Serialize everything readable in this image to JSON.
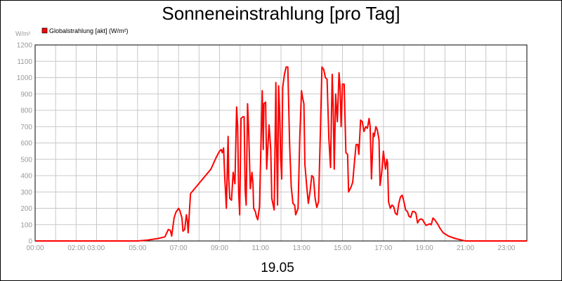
{
  "chart_data": {
    "type": "line",
    "title": "Sonneneinstrahlung [pro Tag]",
    "subtitle": "19.05",
    "ylabel": "W/m²",
    "legend": {
      "position": "top-left",
      "entries": [
        "Globalstrahlung [akt] (W/m²)"
      ]
    },
    "grid": true,
    "xlim": [
      "00:00",
      "24:00"
    ],
    "ylim": [
      0,
      1200
    ],
    "yticks": [
      0,
      100,
      200,
      300,
      400,
      500,
      600,
      700,
      800,
      900,
      1000,
      1100,
      1200
    ],
    "xticks": [
      "00:00",
      "02:00 03:00",
      "05:00",
      "07:00",
      "09:00",
      "11:00",
      "13:00",
      "15:00",
      "17:00",
      "19:00",
      "21:00",
      "23:00"
    ],
    "series": [
      {
        "name": "Globalstrahlung [akt] (W/m²)",
        "color": "#ff0000",
        "points": [
          [
            "00:00",
            0
          ],
          [
            "05:00",
            0
          ],
          [
            "05:30",
            5
          ],
          [
            "06:00",
            15
          ],
          [
            "06:20",
            25
          ],
          [
            "06:30",
            70
          ],
          [
            "06:36",
            65
          ],
          [
            "06:40",
            30
          ],
          [
            "06:47",
            140
          ],
          [
            "06:52",
            175
          ],
          [
            "07:00",
            200
          ],
          [
            "07:04",
            185
          ],
          [
            "07:10",
            140
          ],
          [
            "07:13",
            60
          ],
          [
            "07:18",
            70
          ],
          [
            "07:23",
            160
          ],
          [
            "07:26",
            120
          ],
          [
            "07:28",
            50
          ],
          [
            "07:35",
            290
          ],
          [
            "08:35",
            440
          ],
          [
            "08:50",
            510
          ],
          [
            "09:00",
            550
          ],
          [
            "09:05",
            560
          ],
          [
            "09:08",
            540
          ],
          [
            "09:12",
            570
          ],
          [
            "09:15",
            400
          ],
          [
            "09:18",
            280
          ],
          [
            "09:20",
            200
          ],
          [
            "09:25",
            640
          ],
          [
            "09:27",
            380
          ],
          [
            "09:30",
            260
          ],
          [
            "09:35",
            250
          ],
          [
            "09:40",
            420
          ],
          [
            "09:45",
            350
          ],
          [
            "09:50",
            820
          ],
          [
            "09:53",
            700
          ],
          [
            "09:56",
            300
          ],
          [
            "09:59",
            160
          ],
          [
            "10:03",
            750
          ],
          [
            "10:08",
            760
          ],
          [
            "10:12",
            760
          ],
          [
            "10:15",
            310
          ],
          [
            "10:18",
            220
          ],
          [
            "10:22",
            840
          ],
          [
            "10:25",
            700
          ],
          [
            "10:30",
            320
          ],
          [
            "10:35",
            420
          ],
          [
            "10:38",
            350
          ],
          [
            "10:40",
            200
          ],
          [
            "10:45",
            180
          ],
          [
            "10:48",
            150
          ],
          [
            "10:52",
            130
          ],
          [
            "10:57",
            210
          ],
          [
            "11:05",
            920
          ],
          [
            "11:08",
            560
          ],
          [
            "11:10",
            840
          ],
          [
            "11:15",
            850
          ],
          [
            "11:18",
            440
          ],
          [
            "11:25",
            710
          ],
          [
            "11:30",
            560
          ],
          [
            "11:33",
            260
          ],
          [
            "11:40",
            190
          ],
          [
            "11:45",
            970
          ],
          [
            "11:47",
            600
          ],
          [
            "11:50",
            220
          ],
          [
            "11:53",
            950
          ],
          [
            "11:56",
            780
          ],
          [
            "11:59",
            500
          ],
          [
            "12:02",
            380
          ],
          [
            "12:05",
            940
          ],
          [
            "12:10",
            1020
          ],
          [
            "12:15",
            1065
          ],
          [
            "12:20",
            1065
          ],
          [
            "12:25",
            600
          ],
          [
            "12:30",
            330
          ],
          [
            "12:35",
            230
          ],
          [
            "12:40",
            220
          ],
          [
            "12:43",
            160
          ],
          [
            "12:50",
            200
          ],
          [
            "12:55",
            630
          ],
          [
            "13:00",
            920
          ],
          [
            "13:03",
            880
          ],
          [
            "13:07",
            840
          ],
          [
            "13:10",
            470
          ],
          [
            "13:15",
            340
          ],
          [
            "13:20",
            230
          ],
          [
            "13:25",
            300
          ],
          [
            "13:30",
            400
          ],
          [
            "13:35",
            390
          ],
          [
            "13:40",
            260
          ],
          [
            "13:45",
            205
          ],
          [
            "13:50",
            240
          ],
          [
            "13:55",
            640
          ],
          [
            "14:00",
            1065
          ],
          [
            "14:05",
            1050
          ],
          [
            "14:10",
            1000
          ],
          [
            "14:15",
            990
          ],
          [
            "14:20",
            630
          ],
          [
            "14:25",
            450
          ],
          [
            "14:30",
            1020
          ],
          [
            "14:33",
            800
          ],
          [
            "14:36",
            440
          ],
          [
            "14:40",
            900
          ],
          [
            "14:45",
            730
          ],
          [
            "14:50",
            1030
          ],
          [
            "14:53",
            940
          ],
          [
            "14:56",
            700
          ],
          [
            "15:00",
            960
          ],
          [
            "15:05",
            960
          ],
          [
            "15:10",
            540
          ],
          [
            "15:15",
            530
          ],
          [
            "15:18",
            300
          ],
          [
            "15:25",
            330
          ],
          [
            "15:30",
            360
          ],
          [
            "15:35",
            480
          ],
          [
            "15:40",
            590
          ],
          [
            "15:45",
            590
          ],
          [
            "15:48",
            530
          ],
          [
            "15:53",
            740
          ],
          [
            "15:58",
            730
          ],
          [
            "16:03",
            670
          ],
          [
            "16:08",
            700
          ],
          [
            "16:13",
            690
          ],
          [
            "16:18",
            750
          ],
          [
            "16:21",
            700
          ],
          [
            "16:25",
            380
          ],
          [
            "16:30",
            660
          ],
          [
            "16:33",
            640
          ],
          [
            "16:38",
            700
          ],
          [
            "16:42",
            680
          ],
          [
            "16:47",
            620
          ],
          [
            "16:50",
            340
          ],
          [
            "16:55",
            420
          ],
          [
            "17:00",
            550
          ],
          [
            "17:03",
            490
          ],
          [
            "17:06",
            440
          ],
          [
            "17:10",
            500
          ],
          [
            "17:12",
            480
          ],
          [
            "17:15",
            240
          ],
          [
            "17:20",
            200
          ],
          [
            "17:25",
            220
          ],
          [
            "17:30",
            210
          ],
          [
            "17:35",
            170
          ],
          [
            "17:40",
            160
          ],
          [
            "17:45",
            230
          ],
          [
            "17:50",
            270
          ],
          [
            "17:55",
            280
          ],
          [
            "18:00",
            240
          ],
          [
            "18:05",
            190
          ],
          [
            "18:10",
            180
          ],
          [
            "18:15",
            150
          ],
          [
            "18:20",
            145
          ],
          [
            "18:25",
            180
          ],
          [
            "18:30",
            180
          ],
          [
            "18:35",
            170
          ],
          [
            "18:40",
            110
          ],
          [
            "18:45",
            130
          ],
          [
            "18:50",
            135
          ],
          [
            "18:55",
            130
          ],
          [
            "19:00",
            110
          ],
          [
            "19:05",
            95
          ],
          [
            "19:10",
            100
          ],
          [
            "19:15",
            105
          ],
          [
            "19:20",
            100
          ],
          [
            "19:25",
            140
          ],
          [
            "19:30",
            130
          ],
          [
            "19:40",
            100
          ],
          [
            "19:45",
            80
          ],
          [
            "19:55",
            50
          ],
          [
            "20:10",
            30
          ],
          [
            "20:30",
            15
          ],
          [
            "20:50",
            5
          ],
          [
            "21:00",
            0
          ],
          [
            "24:00",
            0
          ]
        ]
      }
    ]
  }
}
